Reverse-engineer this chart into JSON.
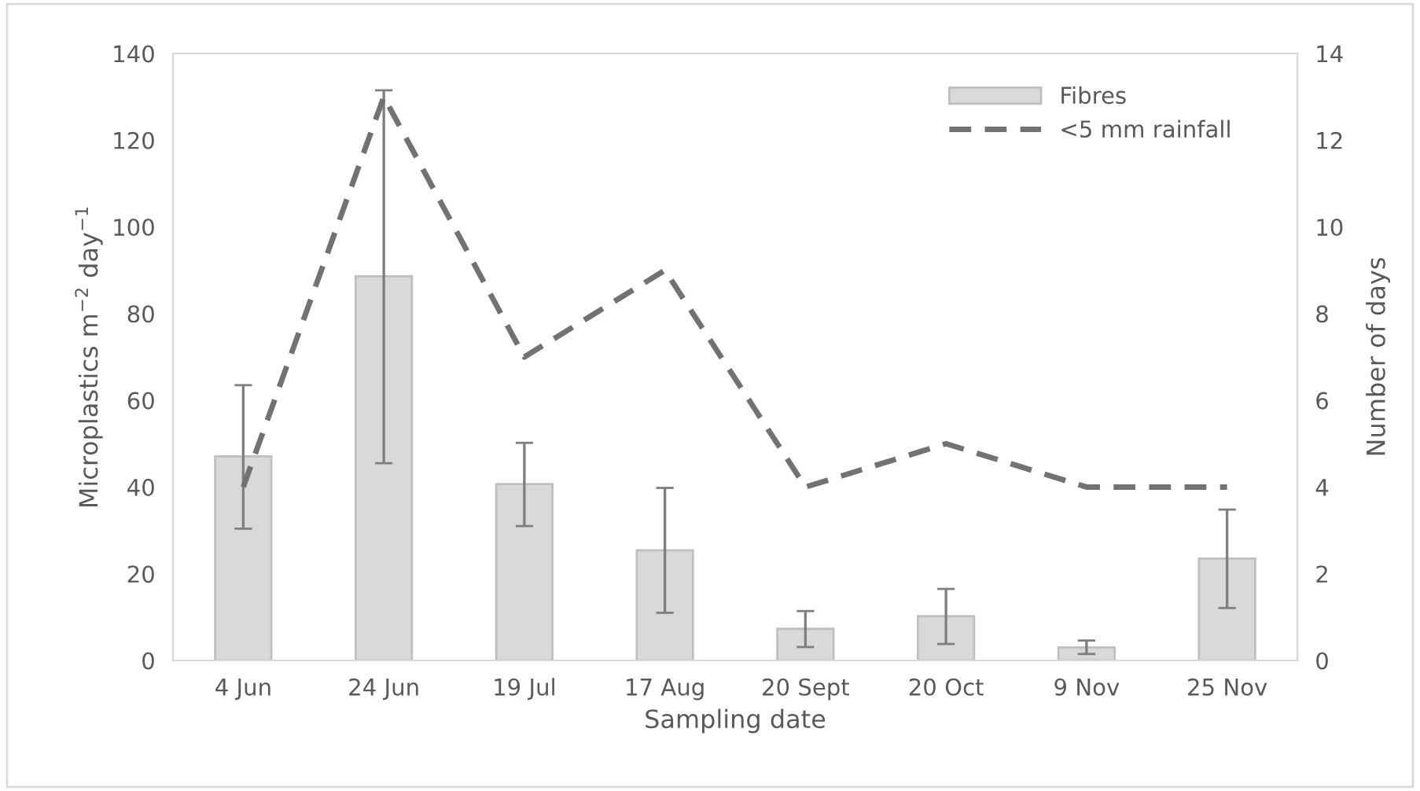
{
  "chart_data": {
    "type": "bar",
    "xlabel": "Sampling date",
    "ylabel": "Microplastics m$^{−2}$ day$^{−1}$",
    "y2label": "Number of days",
    "categories": [
      "4 Jun",
      "24 Jun",
      "19 Jul",
      "17 Aug",
      "20 Sept",
      "20 Oct",
      "9 Nov",
      "25 Nov"
    ],
    "series": [
      {
        "name": "Fibres",
        "color": "#d9d9d9",
        "values": [
          47.1,
          88.6,
          40.7,
          25.4,
          7.3,
          10.2,
          3.0,
          23.5
        ],
        "errors": [
          [
            30.4,
            63.5
          ],
          [
            45.5,
            131.5
          ],
          [
            31.0,
            50.2
          ],
          [
            11.0,
            39.8
          ],
          [
            3.1,
            11.4
          ],
          [
            3.8,
            16.5
          ],
          [
            1.5,
            4.6
          ],
          [
            12.1,
            34.8
          ]
        ]
      },
      {
        "name": "<5 mm rainfall",
        "type": "line",
        "axis": "y2",
        "color": "#767171",
        "line_style": "dashed",
        "marker": "none",
        "values": [
          4,
          13,
          7,
          9,
          4,
          5,
          4,
          4
        ]
      }
    ],
    "ylim": [
      0,
      140
    ],
    "yticks": [
      0,
      20,
      40,
      60,
      80,
      100,
      120,
      140
    ],
    "y2lim": [
      0,
      14
    ],
    "y2ticks": [
      0,
      2,
      4,
      6,
      8,
      10,
      12,
      14
    ],
    "grid": false,
    "legend": "top right"
  }
}
